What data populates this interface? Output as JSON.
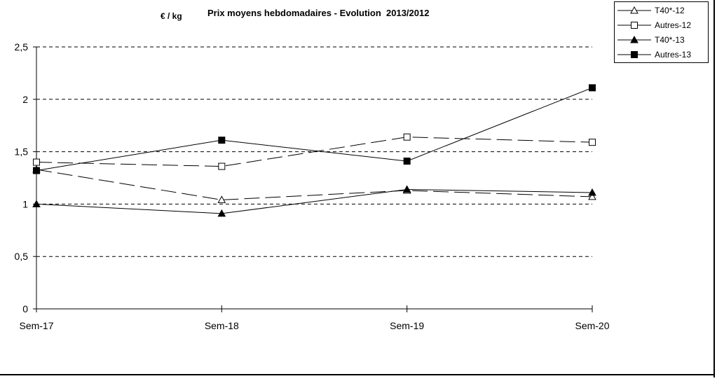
{
  "chart_data": {
    "type": "line",
    "title": "Prix moyens hebdomadaires - Evolution  2013/2012",
    "ylabel": "€ / kg",
    "xlabel": "",
    "categories": [
      "Sem-17",
      "Sem-18",
      "Sem-19",
      "Sem-20"
    ],
    "ylim": [
      0,
      2.5
    ],
    "yticks": [
      "0",
      "0,5",
      "1",
      "1,5",
      "2",
      "2,5"
    ],
    "grid": true,
    "legend_position": "top-right",
    "series": [
      {
        "name": "T40*-12",
        "values": [
          1.33,
          1.04,
          1.13,
          1.07
        ],
        "marker": "triangle-open",
        "dash": "dashed"
      },
      {
        "name": "Autres-12",
        "values": [
          1.4,
          1.36,
          1.64,
          1.59
        ],
        "marker": "square-open",
        "dash": "dashed"
      },
      {
        "name": "T40*-13",
        "values": [
          1.0,
          0.91,
          1.14,
          1.11
        ],
        "marker": "triangle-filled",
        "dash": "solid"
      },
      {
        "name": "Autres-13",
        "values": [
          1.32,
          1.61,
          1.41,
          2.11
        ],
        "marker": "square-filled",
        "dash": "solid"
      }
    ]
  }
}
